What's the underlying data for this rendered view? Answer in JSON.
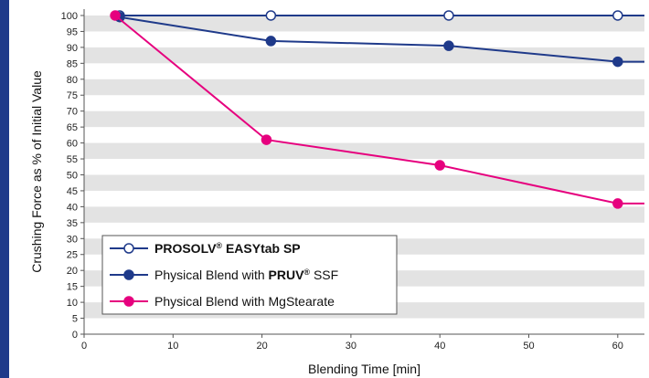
{
  "colors": {
    "accent_bar": "#1f3a8a",
    "navy": "#1f3a8a",
    "magenta": "#e6007e",
    "stripe": "#e3e3e3"
  },
  "chart_data": {
    "type": "line",
    "xlabel": "Blending Time [min]",
    "ylabel": "Crushing Force as % of Initial Value",
    "xlim": [
      0,
      63
    ],
    "ylim": [
      0,
      102
    ],
    "x_ticks": [
      "0",
      "10",
      "20",
      "30",
      "40",
      "50",
      "60"
    ],
    "y_ticks": [
      "0",
      "5",
      "10",
      "15",
      "20",
      "25",
      "30",
      "35",
      "40",
      "45",
      "50",
      "55",
      "60",
      "65",
      "70",
      "75",
      "80",
      "85",
      "90",
      "95",
      "100"
    ],
    "grid": "alternating horizontal bands",
    "legend_position": "bottom-left",
    "series": [
      {
        "name": "PROSOLV® EASYtab SP",
        "legend_parts": [
          {
            "text": "PROSOLV",
            "bold": true
          },
          {
            "text": "®",
            "sup": true,
            "bold": true
          },
          {
            "text": " EASYtab SP",
            "bold": true
          }
        ],
        "color": "#1f3a8a",
        "marker": "hollow-circle",
        "x": [
          4,
          21,
          41,
          60,
          63
        ],
        "y": [
          100,
          100,
          100,
          100,
          100
        ]
      },
      {
        "name": "Physical Blend with PRUV® SSF",
        "legend_parts": [
          {
            "text": "Physical Blend with "
          },
          {
            "text": "PRUV",
            "bold": true
          },
          {
            "text": "®",
            "sup": true,
            "bold": true
          },
          {
            "text": " SSF"
          }
        ],
        "color": "#1f3a8a",
        "marker": "filled-circle",
        "x": [
          4,
          21,
          41,
          60,
          63
        ],
        "y": [
          99.5,
          92,
          90.5,
          85.5,
          85.5
        ]
      },
      {
        "name": "Physical Blend with MgStearate",
        "legend_parts": [
          {
            "text": "Physical Blend with MgStearate"
          }
        ],
        "color": "#e6007e",
        "marker": "filled-circle",
        "x": [
          3.5,
          20.5,
          40,
          60,
          63
        ],
        "y": [
          100,
          61,
          53,
          41,
          41
        ]
      }
    ]
  }
}
